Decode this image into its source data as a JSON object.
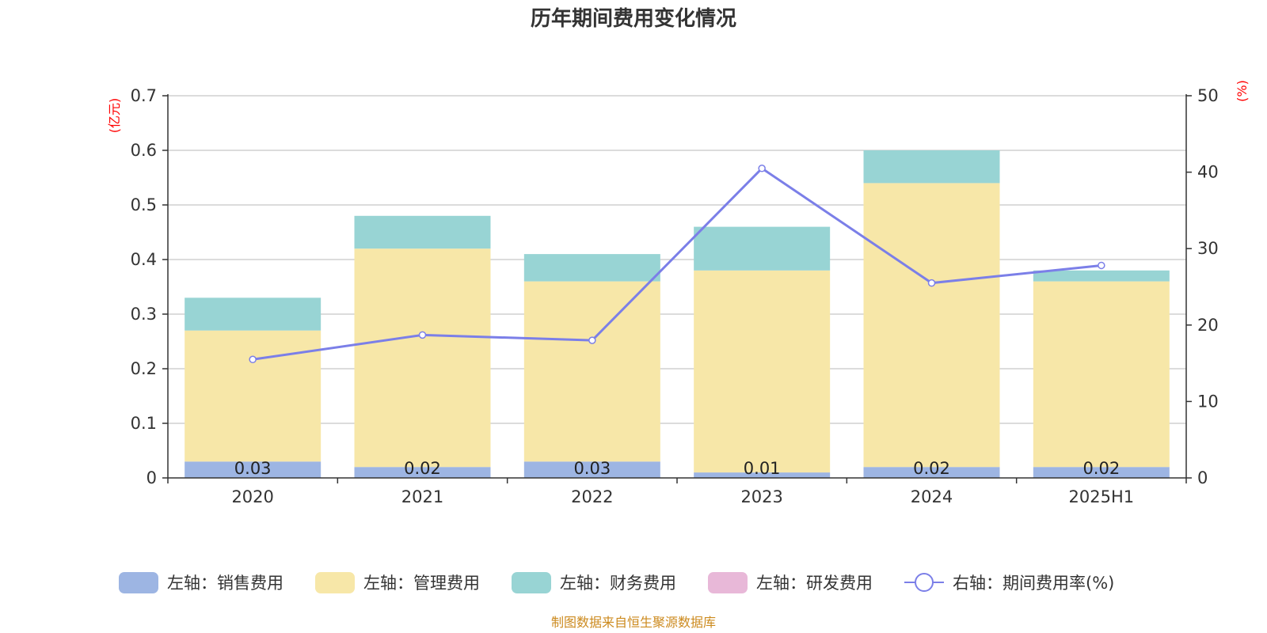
{
  "chart_data": {
    "type": "bar",
    "stacked": true,
    "title": "历年期间费用变化情况",
    "categories": [
      "2020",
      "2021",
      "2022",
      "2023",
      "2024",
      "2025H1"
    ],
    "left_axis": {
      "unit": "(亿元)",
      "ylim": [
        0,
        0.7
      ],
      "ticks": [
        "0",
        "0.1",
        "0.2",
        "0.3",
        "0.4",
        "0.5",
        "0.6",
        "0.7"
      ]
    },
    "right_axis": {
      "unit": "(%)",
      "ylim": [
        0,
        50
      ],
      "ticks": [
        "0",
        "10",
        "20",
        "30",
        "40",
        "50"
      ]
    },
    "series": [
      {
        "name": "左轴：销售费用",
        "axis": "left",
        "kind": "bar",
        "color": "#9db5e3",
        "values": [
          0.03,
          0.02,
          0.03,
          0.01,
          0.02,
          0.02
        ],
        "labels": [
          "0.03",
          "0.02",
          "0.03",
          "0.01",
          "0.02",
          "0.02"
        ]
      },
      {
        "name": "左轴：管理费用",
        "axis": "left",
        "kind": "bar",
        "color": "#f7e7a8",
        "values": [
          0.24,
          0.4,
          0.33,
          0.37,
          0.52,
          0.34
        ]
      },
      {
        "name": "左轴：财务费用",
        "axis": "left",
        "kind": "bar",
        "color": "#98d4d4",
        "values": [
          0.06,
          0.06,
          0.05,
          0.08,
          0.06,
          0.02
        ]
      },
      {
        "name": "左轴：研发费用",
        "axis": "left",
        "kind": "bar",
        "color": "#e8b8d8",
        "values": [
          0,
          0,
          0,
          0,
          0,
          0
        ]
      },
      {
        "name": "右轴：期间费用率(%)",
        "axis": "right",
        "kind": "line",
        "color": "#7b7fe8",
        "values": [
          15.5,
          18.7,
          18.0,
          40.5,
          25.5,
          27.8
        ]
      }
    ],
    "legend_position": "bottom",
    "grid": true
  },
  "footer": {
    "source": "制图数据来自恒生聚源数据库"
  }
}
